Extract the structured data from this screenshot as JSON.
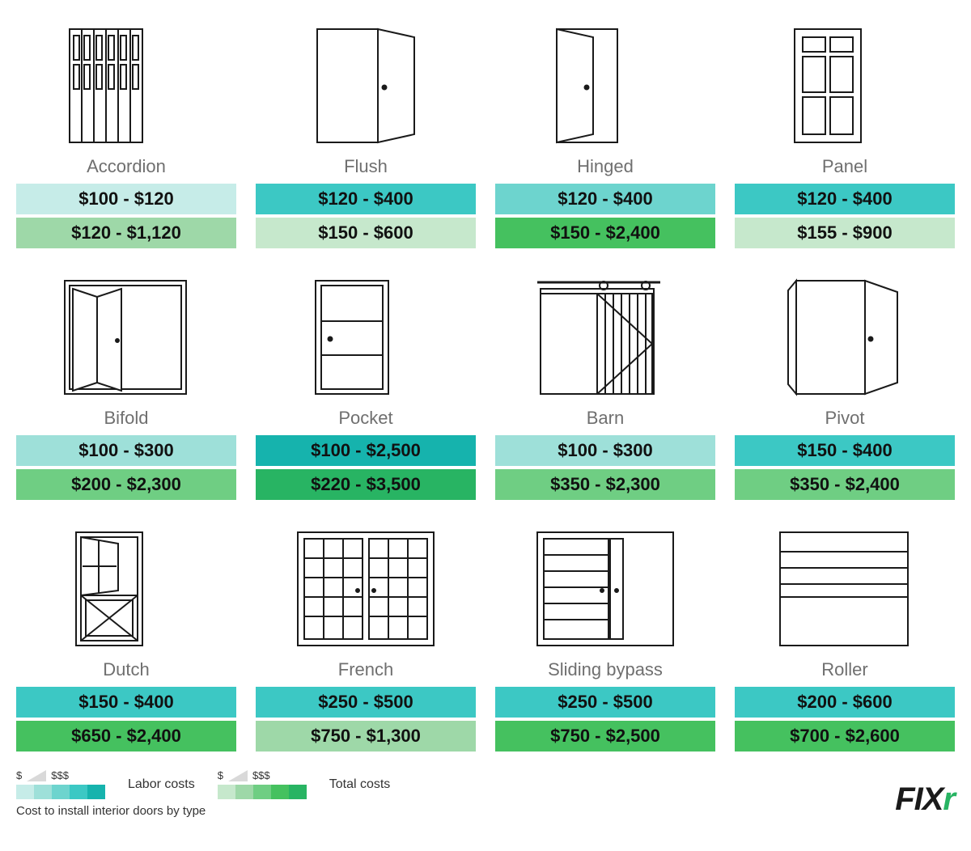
{
  "type": "infographic",
  "caption": "Cost to install interior doors by type",
  "brand": "FIXR",
  "legend": {
    "labor_label": "Labor costs",
    "total_label": "Total costs",
    "low_symbol": "$",
    "high_symbol": "$$$"
  },
  "colors": {
    "labor_scale": [
      "#c6ece8",
      "#9ee0d9",
      "#6dd4ce",
      "#3cc8c4",
      "#16b3ad"
    ],
    "total_scale": [
      "#c6e8cc",
      "#9ed8a8",
      "#6fce83",
      "#45c15f",
      "#28b463"
    ],
    "text": "#1a1a1a",
    "title_text": "#6f6f6f",
    "icon_stroke": "#1a1a1a",
    "background": "#ffffff"
  },
  "labor_color_map": {
    "1": "#c6ece8",
    "2": "#9ee0d9",
    "3": "#6dd4ce",
    "4": "#3cc8c4",
    "5": "#16b3ad"
  },
  "total_color_map": {
    "1": "#c6e8cc",
    "2": "#9ed8a8",
    "3": "#6fce83",
    "4": "#45c15f",
    "5": "#28b463"
  },
  "items": [
    {
      "name": "Accordion",
      "labor": "$100 - $120",
      "total": "$120 - $1,120",
      "labor_tier": 1,
      "total_tier": 2,
      "icon": "accordion"
    },
    {
      "name": "Flush",
      "labor": "$120 - $400",
      "total": "$150 - $600",
      "labor_tier": 4,
      "total_tier": 1,
      "icon": "flush"
    },
    {
      "name": "Hinged",
      "labor": "$120 - $400",
      "total": "$150 - $2,400",
      "labor_tier": 3,
      "total_tier": 4,
      "icon": "hinged"
    },
    {
      "name": "Panel",
      "labor": "$120 - $400",
      "total": "$155 - $900",
      "labor_tier": 4,
      "total_tier": 1,
      "icon": "panel"
    },
    {
      "name": "Bifold",
      "labor": "$100 - $300",
      "total": "$200 - $2,300",
      "labor_tier": 2,
      "total_tier": 3,
      "icon": "bifold"
    },
    {
      "name": "Pocket",
      "labor": "$100 - $2,500",
      "total": "$220 - $3,500",
      "labor_tier": 5,
      "total_tier": 5,
      "icon": "pocket"
    },
    {
      "name": "Barn",
      "labor": "$100 - $300",
      "total": "$350 - $2,300",
      "labor_tier": 2,
      "total_tier": 3,
      "icon": "barn"
    },
    {
      "name": "Pivot",
      "labor": "$150 - $400",
      "total": "$350 - $2,400",
      "labor_tier": 4,
      "total_tier": 3,
      "icon": "pivot"
    },
    {
      "name": "Dutch",
      "labor": "$150 - $400",
      "total": "$650 - $2,400",
      "labor_tier": 4,
      "total_tier": 4,
      "icon": "dutch"
    },
    {
      "name": "French",
      "labor": "$250 - $500",
      "total": "$750 - $1,300",
      "labor_tier": 4,
      "total_tier": 2,
      "icon": "french"
    },
    {
      "name": "Sliding bypass",
      "labor": "$250 - $500",
      "total": "$750 - $2,500",
      "labor_tier": 4,
      "total_tier": 4,
      "icon": "sliding"
    },
    {
      "name": "Roller",
      "labor": "$200 - $600",
      "total": "$700 - $2,600",
      "labor_tier": 4,
      "total_tier": 4,
      "icon": "roller"
    }
  ]
}
